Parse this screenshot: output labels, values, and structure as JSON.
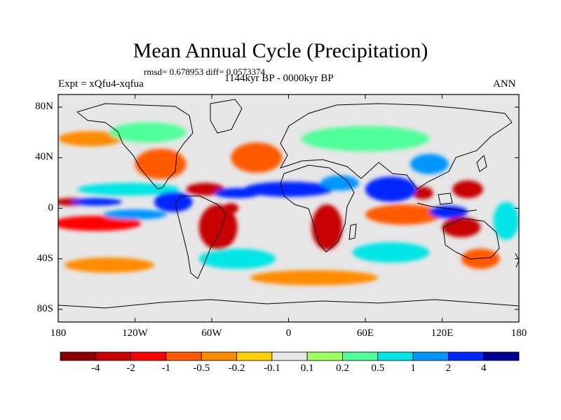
{
  "figure": {
    "title": "Mean Annual Cycle (Precipitation)",
    "stats": "rmsd= 0.678953  diff= 0.0573374",
    "experiment": "Expt = xQfu4-xqfua",
    "period": "1144kyr BP - 0000kyr BP",
    "season": "ANN"
  },
  "map": {
    "type": "contour-map",
    "projection": "cylindrical equidistant",
    "variable": "Precipitation difference",
    "background_color": "#e6e6e6",
    "y_ticks": [
      {
        "value": 80,
        "label": "80N"
      },
      {
        "value": 40,
        "label": "40N"
      },
      {
        "value": 0,
        "label": "0"
      },
      {
        "value": -40,
        "label": "40S"
      },
      {
        "value": -80,
        "label": "80S"
      }
    ],
    "x_ticks": [
      {
        "value": -180,
        "label": "180"
      },
      {
        "value": -120,
        "label": "120W"
      },
      {
        "value": -60,
        "label": "60W"
      },
      {
        "value": 0,
        "label": "0"
      },
      {
        "value": 60,
        "label": "60E"
      },
      {
        "value": 120,
        "label": "120E"
      },
      {
        "value": 180,
        "label": "180"
      }
    ],
    "regions": [
      {
        "lon": -170,
        "lat": 5,
        "rx": 14,
        "ry": 3,
        "level": -4
      },
      {
        "lon": -150,
        "lat": -12,
        "rx": 35,
        "ry": 6,
        "level": -2
      },
      {
        "lon": -100,
        "lat": 35,
        "rx": 20,
        "ry": 12,
        "level": -1
      },
      {
        "lon": -65,
        "lat": 15,
        "rx": 15,
        "ry": 5,
        "level": -4
      },
      {
        "lon": -55,
        "lat": -15,
        "rx": 15,
        "ry": 18,
        "level": -4
      },
      {
        "lon": -45,
        "lat": 0,
        "rx": 6,
        "ry": 4,
        "level": -4
      },
      {
        "lon": -25,
        "lat": 40,
        "rx": 20,
        "ry": 12,
        "level": -1
      },
      {
        "lon": -140,
        "lat": -45,
        "rx": 35,
        "ry": 6,
        "level": -0.5
      },
      {
        "lon": -155,
        "lat": 55,
        "rx": 25,
        "ry": 6,
        "level": -0.5
      },
      {
        "lon": 30,
        "lat": -15,
        "rx": 12,
        "ry": 18,
        "level": -4
      },
      {
        "lon": 90,
        "lat": -5,
        "rx": 30,
        "ry": 8,
        "level": -1
      },
      {
        "lon": 140,
        "lat": 15,
        "rx": 12,
        "ry": 7,
        "level": -4
      },
      {
        "lon": 105,
        "lat": 12,
        "rx": 8,
        "ry": 5,
        "level": -4
      },
      {
        "lon": 135,
        "lat": -15,
        "rx": 15,
        "ry": 8,
        "level": -4
      },
      {
        "lon": 150,
        "lat": -40,
        "rx": 15,
        "ry": 8,
        "level": -1
      },
      {
        "lon": 20,
        "lat": -55,
        "rx": 50,
        "ry": 6,
        "level": -0.5
      },
      {
        "lon": -150,
        "lat": 5,
        "rx": 20,
        "ry": 3,
        "level": 2
      },
      {
        "lon": -120,
        "lat": -5,
        "rx": 25,
        "ry": 4,
        "level": 1
      },
      {
        "lon": -125,
        "lat": 15,
        "rx": 40,
        "ry": 5,
        "level": 0.5
      },
      {
        "lon": -90,
        "lat": 5,
        "rx": 15,
        "ry": 8,
        "level": 2
      },
      {
        "lon": -40,
        "lat": 12,
        "rx": 18,
        "ry": 4,
        "level": 2
      },
      {
        "lon": 0,
        "lat": 15,
        "rx": 35,
        "ry": 6,
        "level": 2
      },
      {
        "lon": 40,
        "lat": 20,
        "rx": 15,
        "ry": 6,
        "level": 1
      },
      {
        "lon": 80,
        "lat": 15,
        "rx": 20,
        "ry": 10,
        "level": 2
      },
      {
        "lon": 110,
        "lat": 35,
        "rx": 15,
        "ry": 8,
        "level": 1
      },
      {
        "lon": 125,
        "lat": -3,
        "rx": 15,
        "ry": 5,
        "level": 2
      },
      {
        "lon": -40,
        "lat": -40,
        "rx": 30,
        "ry": 8,
        "level": 0.5
      },
      {
        "lon": 80,
        "lat": -35,
        "rx": 30,
        "ry": 8,
        "level": 0.5
      },
      {
        "lon": 60,
        "lat": 55,
        "rx": 50,
        "ry": 10,
        "level": 0.2
      },
      {
        "lon": -110,
        "lat": 60,
        "rx": 30,
        "ry": 8,
        "level": 0.2
      },
      {
        "lon": 170,
        "lat": -10,
        "rx": 10,
        "ry": 15,
        "level": 0.5
      }
    ]
  },
  "colorbar": {
    "labels": [
      "-4",
      "-2",
      "-1",
      "-0.5",
      "-0.2",
      "-0.1",
      "0.1",
      "0.2",
      "0.5",
      "1",
      "2",
      "4"
    ],
    "colors": [
      "#8b0000",
      "#c80000",
      "#ff0000",
      "#ff5a00",
      "#ff8c00",
      "#ffd000",
      "#e6e6e6",
      "#a0ff60",
      "#50ff9a",
      "#00e6e6",
      "#0096ff",
      "#0028ff",
      "#000096"
    ]
  }
}
